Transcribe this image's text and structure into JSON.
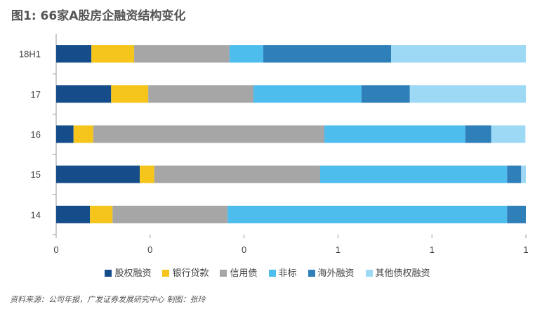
{
  "title": "图1: 66家A股房企融资结构变化",
  "source": "资料来源：公司年报，广发证券发展研究中心      制图：张玲",
  "chart_data": {
    "type": "bar",
    "orientation": "horizontal",
    "stacked": "percent",
    "categories": [
      "18H1",
      "17",
      "16",
      "15",
      "14"
    ],
    "series": [
      {
        "name": "股权融资",
        "color": "#154d8a",
        "values": [
          0.075,
          0.117,
          0.037,
          0.178,
          0.072
        ]
      },
      {
        "name": "银行贷款",
        "color": "#f6c51b",
        "values": [
          0.091,
          0.079,
          0.042,
          0.031,
          0.048
        ]
      },
      {
        "name": "信用债",
        "color": "#a6a6a6",
        "values": [
          0.203,
          0.224,
          0.492,
          0.353,
          0.245
        ]
      },
      {
        "name": "非标",
        "color": "#4dbdee",
        "values": [
          0.072,
          0.23,
          0.3,
          0.398,
          0.595
        ]
      },
      {
        "name": "海外融资",
        "color": "#2f7fb8",
        "values": [
          0.272,
          0.103,
          0.055,
          0.03,
          0.04
        ]
      },
      {
        "name": "其他债权融资",
        "color": "#9dd9f5",
        "values": [
          0.287,
          0.247,
          0.073,
          0.01,
          0.0
        ]
      }
    ],
    "xticks": [
      0,
      0.2,
      0.4,
      0.6,
      0.8,
      1
    ],
    "xtick_labels": [
      "0",
      "0",
      "0",
      "1",
      "1",
      "1"
    ],
    "xlim": [
      0,
      1
    ],
    "legend": "bottom",
    "grid": false
  }
}
